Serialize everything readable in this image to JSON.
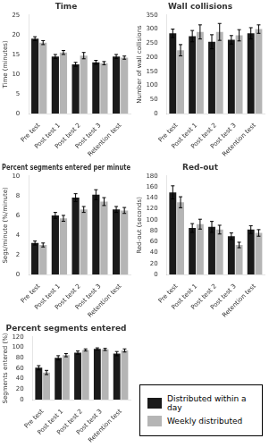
{
  "chart_data": [
    {
      "type": "bar",
      "title": "Time",
      "ylabel": "Time (minutes)",
      "categories": [
        "Pre test",
        "Post test 1",
        "Post test 2",
        "Post test 3",
        "Retention test"
      ],
      "series": [
        {
          "name": "Distributed within a day",
          "color": "#1a1a1a",
          "values": [
            19.0,
            14.5,
            12.5,
            13.0,
            14.5
          ],
          "errors": [
            0.5,
            0.5,
            0.5,
            0.5,
            0.5
          ]
        },
        {
          "name": "Weekly distributed",
          "color": "#b5b5b5",
          "values": [
            18.0,
            15.5,
            14.7,
            12.8,
            14.2
          ],
          "errors": [
            0.5,
            0.5,
            0.8,
            0.4,
            0.4
          ]
        }
      ],
      "ylim": [
        0,
        25
      ],
      "yticks": [
        0,
        5,
        10,
        15,
        20,
        25
      ],
      "grid": false
    },
    {
      "type": "bar",
      "title": "Wall collisions",
      "ylabel": "Number of wall collisions",
      "categories": [
        "Pre test",
        "Post test 1",
        "Post test 2",
        "Post test 3",
        "Retention test"
      ],
      "series": [
        {
          "name": "Distributed within a day",
          "color": "#1a1a1a",
          "values": [
            285,
            275,
            255,
            262,
            285
          ],
          "errors": [
            15,
            20,
            25,
            15,
            20
          ]
        },
        {
          "name": "Weekly distributed",
          "color": "#b5b5b5",
          "values": [
            225,
            290,
            290,
            278,
            300
          ],
          "errors": [
            20,
            25,
            30,
            20,
            15
          ]
        }
      ],
      "ylim": [
        0,
        350
      ],
      "yticks": [
        0,
        50,
        100,
        150,
        200,
        250,
        300,
        350
      ],
      "grid": false
    },
    {
      "type": "bar",
      "title": "Percent segments entered per minute",
      "ylabel": "Segs/minute (%/minute)",
      "categories": [
        "Pre test",
        "Post test 1",
        "Post test 2",
        "Post test 3",
        "Retention test"
      ],
      "series": [
        {
          "name": "Distributed within a day",
          "color": "#1a1a1a",
          "values": [
            3.2,
            6.0,
            7.8,
            8.1,
            6.6
          ],
          "errors": [
            0.2,
            0.3,
            0.4,
            0.5,
            0.3
          ]
        },
        {
          "name": "Weekly distributed",
          "color": "#b5b5b5",
          "values": [
            3.0,
            5.7,
            6.6,
            7.4,
            6.5
          ],
          "errors": [
            0.2,
            0.3,
            0.3,
            0.4,
            0.3
          ]
        }
      ],
      "ylim": [
        0,
        10
      ],
      "yticks": [
        0,
        2,
        4,
        6,
        8,
        10
      ],
      "grid": false
    },
    {
      "type": "bar",
      "title": "Red-out",
      "ylabel": "Red-out (seconds)",
      "categories": [
        "Pre test",
        "Post test 1",
        "Post test 2",
        "Post test 3",
        "Retention test"
      ],
      "series": [
        {
          "name": "Distributed within a day",
          "color": "#1a1a1a",
          "values": [
            150,
            85,
            87,
            70,
            82
          ],
          "errors": [
            12,
            8,
            10,
            6,
            7
          ]
        },
        {
          "name": "Weekly distributed",
          "color": "#b5b5b5",
          "values": [
            132,
            92,
            82,
            54,
            76
          ],
          "errors": [
            10,
            9,
            8,
            5,
            6
          ]
        }
      ],
      "ylim": [
        0,
        180
      ],
      "yticks": [
        0,
        20,
        40,
        60,
        80,
        100,
        120,
        140,
        160,
        180
      ],
      "grid": false
    },
    {
      "type": "bar",
      "title": "Percent segments entered",
      "ylabel": "Segments entered (%)",
      "categories": [
        "Pre test",
        "Post test 1",
        "Post test 2",
        "Post test 3",
        "Retention test"
      ],
      "series": [
        {
          "name": "Distributed within a day",
          "color": "#1a1a1a",
          "values": [
            61,
            80,
            90,
            97,
            88
          ],
          "errors": [
            4,
            4,
            3,
            2,
            4
          ]
        },
        {
          "name": "Weekly distributed",
          "color": "#b5b5b5",
          "values": [
            52,
            85,
            95,
            96,
            94
          ],
          "errors": [
            4,
            3,
            2,
            2,
            3
          ]
        }
      ],
      "ylim": [
        0,
        120
      ],
      "yticks": [
        0,
        20,
        40,
        60,
        80,
        100,
        120
      ],
      "grid": false,
      "legend": "lower right"
    }
  ]
}
